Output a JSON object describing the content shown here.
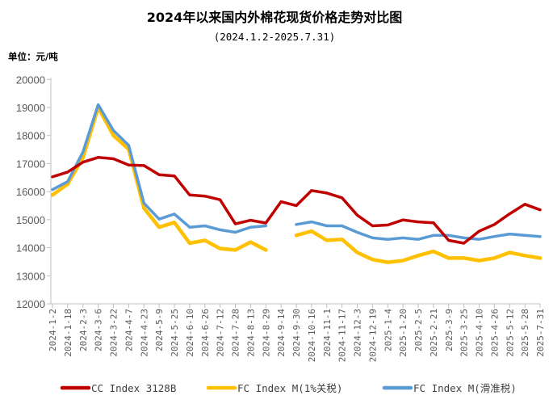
{
  "chart_data": {
    "type": "line",
    "title": "2024年以来国内外棉花现货价格走势对比图",
    "subtitle": "(2024.1.2-2025.7.31)",
    "unit_label": "单位：元/吨",
    "ylim": [
      12000,
      20000
    ],
    "yticks": [
      12000,
      13000,
      14000,
      15000,
      16000,
      17000,
      18000,
      19000,
      20000
    ],
    "grid": false,
    "legend_position": "bottom",
    "categories": [
      "2024-1-2",
      "2024-1-18",
      "2024-2-3",
      "2024-2-19",
      "2024-3-6",
      "2024-3-22",
      "2024-4-7",
      "2024-4-23",
      "2024-5-9",
      "2024-5-25",
      "2024-6-10",
      "2024-6-26",
      "2024-7-12",
      "2024-7-28",
      "2024-8-13",
      "2024-8-29",
      "2024-9-14",
      "2024-9-30",
      "2024-10-16",
      "2024-11-1",
      "2024-11-17",
      "2024-12-3",
      "2024-12-19",
      "2025-1-4",
      "2025-1-20",
      "2025-2-5",
      "2025-2-21",
      "2025-3-9",
      "2025-3-25",
      "2025-4-10",
      "2025-4-26",
      "2025-5-12",
      "2025-5-28",
      "2025-6-13",
      "2025-6-29",
      "2025-7-15",
      "2025-7-31"
    ],
    "x": [
      "2024-1-2",
      "2024-1-18",
      "2024-2-3",
      "2024-3-6",
      "2024-3-22",
      "2024-4-7",
      "2024-4-23",
      "2024-5-9",
      "2024-5-25",
      "2024-6-10",
      "2024-6-26",
      "2024-7-12",
      "2024-7-28",
      "2024-8-13",
      "2024-8-29",
      "2024-9-14",
      "2024-9-30",
      "2024-10-16",
      "2024-11-1",
      "2024-11-17",
      "2024-12-3",
      "2024-12-19",
      "2025-1-4",
      "2025-1-20",
      "2025-2-5",
      "2025-2-21",
      "2025-3-9",
      "2025-3-25",
      "2025-4-10",
      "2025-4-26",
      "2025-5-12",
      "2025-5-28",
      "2025-7-31"
    ],
    "series": [
      {
        "name": "FC Index M(1%关税)",
        "color": "#FFC000",
        "values": [
          15880,
          16270,
          17220,
          19000,
          18000,
          17510,
          15410,
          14730,
          14900,
          14160,
          14260,
          13970,
          13920,
          14200,
          13920,
          null,
          14440,
          14590,
          14260,
          14300,
          13830,
          13580,
          13480,
          13540,
          13720,
          13870,
          13630,
          13630,
          13540,
          13630,
          13830,
          13720,
          13630
        ]
      },
      {
        "name": "FC Index M(滑准税)",
        "color": "#5B9BD5",
        "values": [
          16070,
          16360,
          17420,
          19100,
          18180,
          17650,
          15590,
          15020,
          15200,
          14730,
          14780,
          14640,
          14550,
          14730,
          14780,
          null,
          14830,
          14920,
          14780,
          14780,
          14550,
          14350,
          14300,
          14350,
          14300,
          14440,
          14440,
          14350,
          14300,
          14400,
          14490,
          14440,
          14400
        ]
      },
      {
        "name": "CC Index 3128B",
        "color": "#C00000",
        "values": [
          16530,
          16700,
          17050,
          17220,
          17170,
          16950,
          16930,
          16600,
          16560,
          15880,
          15840,
          15710,
          14850,
          14980,
          14880,
          15640,
          15500,
          16040,
          15950,
          15780,
          15160,
          14780,
          14810,
          14990,
          14920,
          14890,
          14260,
          14160,
          14590,
          14830,
          15210,
          15550,
          15350
        ]
      }
    ],
    "legend": [
      "CC Index 3128B",
      "FC Index M(1%关税)",
      "FC Index M(滑准税)"
    ]
  }
}
